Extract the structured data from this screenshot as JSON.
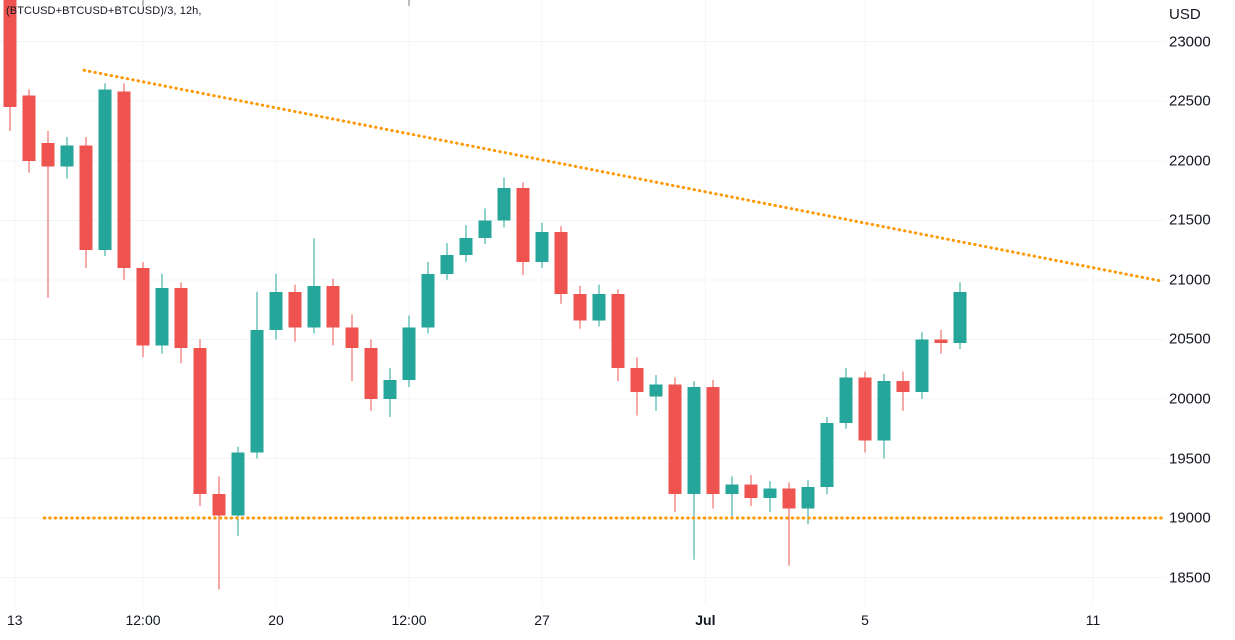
{
  "legend": {
    "symbol_text": "(BTCUSD+BTCUSD+BTCUSD)/3, 12h,"
  },
  "price_axis": {
    "currency_label": "USD",
    "labels": [
      23000,
      22500,
      22000,
      21500,
      21000,
      20500,
      20000,
      19500,
      19000,
      18500
    ]
  },
  "chart_data": {
    "type": "candlestick",
    "title": "(BTCUSD+BTCUSD+BTCUSD)/3",
    "interval": "12h",
    "currency": "USD",
    "up_color": "#26a69a",
    "down_color": "#ef5350",
    "trendline_color": "#ff9800",
    "grid_color": "#f2f5f8",
    "text_color": "#131722",
    "price_range": [
      18270,
      23350
    ],
    "price_axis_ticks": [
      23000,
      22500,
      22000,
      21500,
      21000,
      20500,
      20000,
      19500,
      19000,
      18500
    ],
    "time_ticks": [
      {
        "label": "13",
        "index": 0.25,
        "bold": false
      },
      {
        "label": "12:00",
        "index": 7,
        "bold": false
      },
      {
        "label": "20",
        "index": 14,
        "bold": false
      },
      {
        "label": "12:00",
        "index": 21,
        "bold": false
      },
      {
        "label": "27",
        "index": 28,
        "bold": false
      },
      {
        "label": "Jul",
        "index": 36.6,
        "bold": true
      },
      {
        "label": "5",
        "index": 45,
        "bold": false
      },
      {
        "label": "11",
        "index": 57,
        "bold": false
      }
    ],
    "candles": [
      [
        23450,
        23500,
        22250,
        22450
      ],
      [
        22550,
        22600,
        21900,
        22000
      ],
      [
        22150,
        22250,
        20850,
        21950
      ],
      [
        21950,
        22200,
        21850,
        22130
      ],
      [
        22130,
        22200,
        21100,
        21250
      ],
      [
        21250,
        22650,
        21200,
        22600
      ],
      [
        22580,
        22650,
        21000,
        21100
      ],
      [
        21100,
        21150,
        20350,
        20450
      ],
      [
        20450,
        21050,
        20380,
        20930
      ],
      [
        20930,
        20980,
        20300,
        20430
      ],
      [
        20430,
        20500,
        19100,
        19200
      ],
      [
        19200,
        19350,
        18400,
        19020
      ],
      [
        19020,
        19600,
        18850,
        19550
      ],
      [
        19550,
        20900,
        19500,
        20580
      ],
      [
        20580,
        21050,
        20500,
        20900
      ],
      [
        20900,
        20960,
        20480,
        20600
      ],
      [
        20600,
        21350,
        20550,
        20950
      ],
      [
        20950,
        21010,
        20450,
        20600
      ],
      [
        20600,
        20710,
        20150,
        20430
      ],
      [
        20430,
        20500,
        19900,
        20000
      ],
      [
        20000,
        20260,
        19850,
        20160
      ],
      [
        20160,
        20700,
        20100,
        20600
      ],
      [
        20600,
        21150,
        20550,
        21050
      ],
      [
        21050,
        21310,
        21000,
        21210
      ],
      [
        21210,
        21460,
        21150,
        21350
      ],
      [
        21350,
        21600,
        21300,
        21500
      ],
      [
        21500,
        21860,
        21440,
        21770
      ],
      [
        21770,
        21820,
        21040,
        21150
      ],
      [
        21150,
        21480,
        21100,
        21400
      ],
      [
        21400,
        21450,
        20800,
        20880
      ],
      [
        20880,
        20950,
        20590,
        20660
      ],
      [
        20660,
        20960,
        20610,
        20880
      ],
      [
        20880,
        20920,
        20150,
        20260
      ],
      [
        20260,
        20350,
        19860,
        20060
      ],
      [
        20020,
        20200,
        19900,
        20120
      ],
      [
        20120,
        20180,
        19050,
        19200
      ],
      [
        19200,
        20150,
        18650,
        20100
      ],
      [
        20100,
        20160,
        19080,
        19200
      ],
      [
        19200,
        19350,
        19000,
        19280
      ],
      [
        19280,
        19360,
        19100,
        19170
      ],
      [
        19170,
        19310,
        19050,
        19250
      ],
      [
        19250,
        19300,
        18600,
        19080
      ],
      [
        19080,
        19320,
        18950,
        19260
      ],
      [
        19260,
        19850,
        19200,
        19800
      ],
      [
        19800,
        20260,
        19750,
        20180
      ],
      [
        20180,
        20230,
        19550,
        19650
      ],
      [
        19650,
        20210,
        19500,
        20150
      ],
      [
        20150,
        20230,
        19900,
        20060
      ],
      [
        20060,
        20560,
        20000,
        20500
      ],
      [
        20500,
        20580,
        20380,
        20470
      ],
      [
        20470,
        20980,
        20420,
        20900
      ]
    ],
    "trendlines": [
      {
        "name": "descending-resistance",
        "x1_index": 3.9,
        "price1": 22760,
        "x2_index": 60.6,
        "price2": 20990
      },
      {
        "name": "horizontal-support",
        "x1_index": 1.8,
        "price1": 19000,
        "x2_index": 60.6,
        "price2": 19000
      }
    ]
  }
}
